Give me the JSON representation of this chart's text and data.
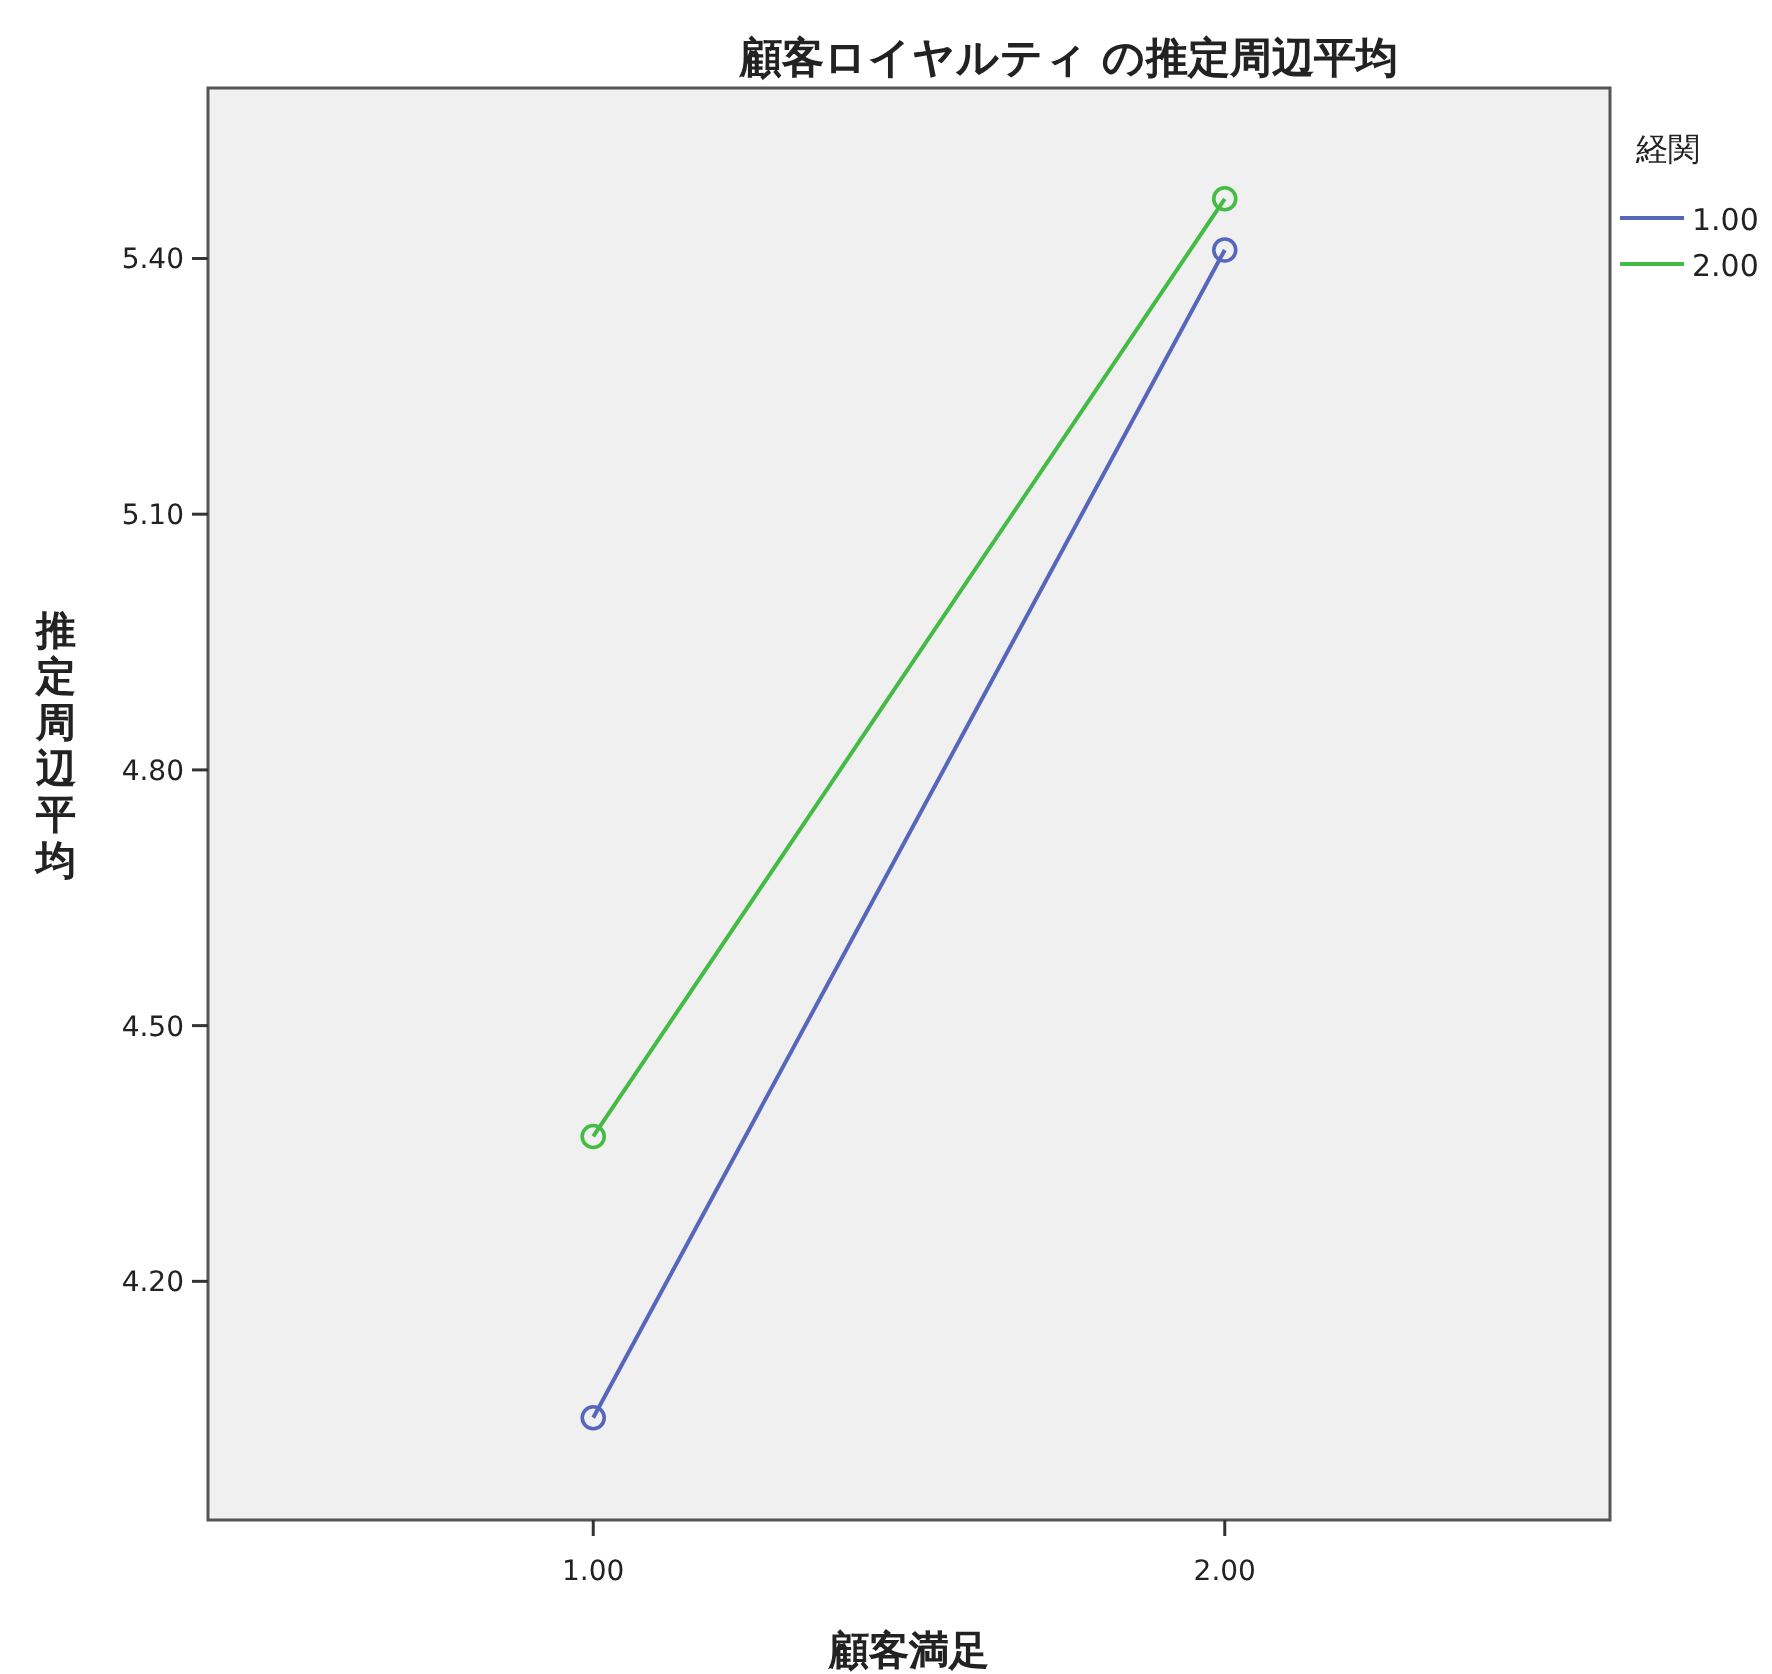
{
  "chart_data": {
    "type": "line",
    "title": "顧客ロイヤルティ の推定周辺平均",
    "xlabel": "顧客満足",
    "ylabel": "推定周辺平均",
    "legend_title": "経関",
    "categories": [
      "1.00",
      "2.00"
    ],
    "series": [
      {
        "name": "1.00",
        "color": "#5566bb",
        "values": [
          4.04,
          5.41
        ]
      },
      {
        "name": "2.00",
        "color": "#44bb44",
        "values": [
          4.37,
          5.47
        ]
      }
    ],
    "ylim": [
      3.92,
      5.6
    ],
    "yticks": [
      {
        "value": 4.2,
        "label": "4.20"
      },
      {
        "value": 4.5,
        "label": "4.50"
      },
      {
        "value": 4.8,
        "label": "4.80"
      },
      {
        "value": 5.1,
        "label": "5.10"
      },
      {
        "value": 5.4,
        "label": "5.40"
      }
    ],
    "marker": "circle",
    "line_style": "solid",
    "legend": "top right",
    "grid": false
  }
}
